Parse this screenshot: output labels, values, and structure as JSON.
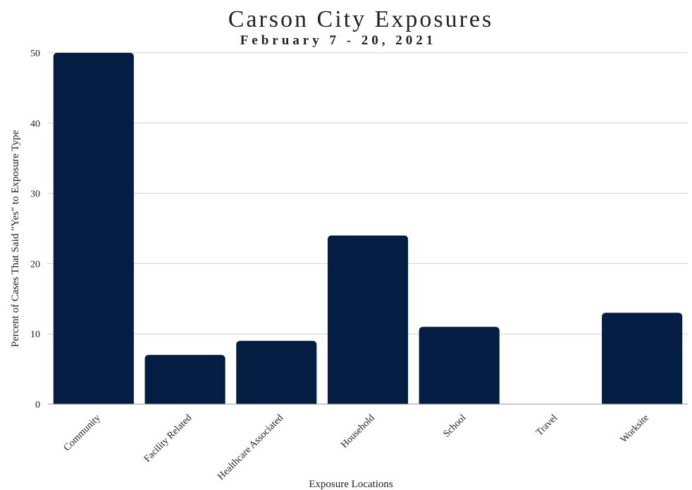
{
  "chart_data": {
    "type": "bar",
    "title": "Carson City Exposures",
    "subtitle": "February 7 - 20, 2021",
    "xlabel": "Exposure Locations",
    "ylabel": "Percent of Cases That Said \"Yes\" to Exposure Type",
    "categories": [
      "Community",
      "Facility Related",
      "Healthcare Associated",
      "Household",
      "School",
      "Travel",
      "Worksite"
    ],
    "values": [
      50,
      7,
      9,
      24,
      11,
      0,
      13
    ],
    "ylim": [
      0,
      50
    ],
    "yticks": [
      0,
      10,
      20,
      30,
      40,
      50
    ],
    "grid": true,
    "legend": "none",
    "bar_color": "#031e42",
    "grid_color": "#cfcfcf"
  }
}
